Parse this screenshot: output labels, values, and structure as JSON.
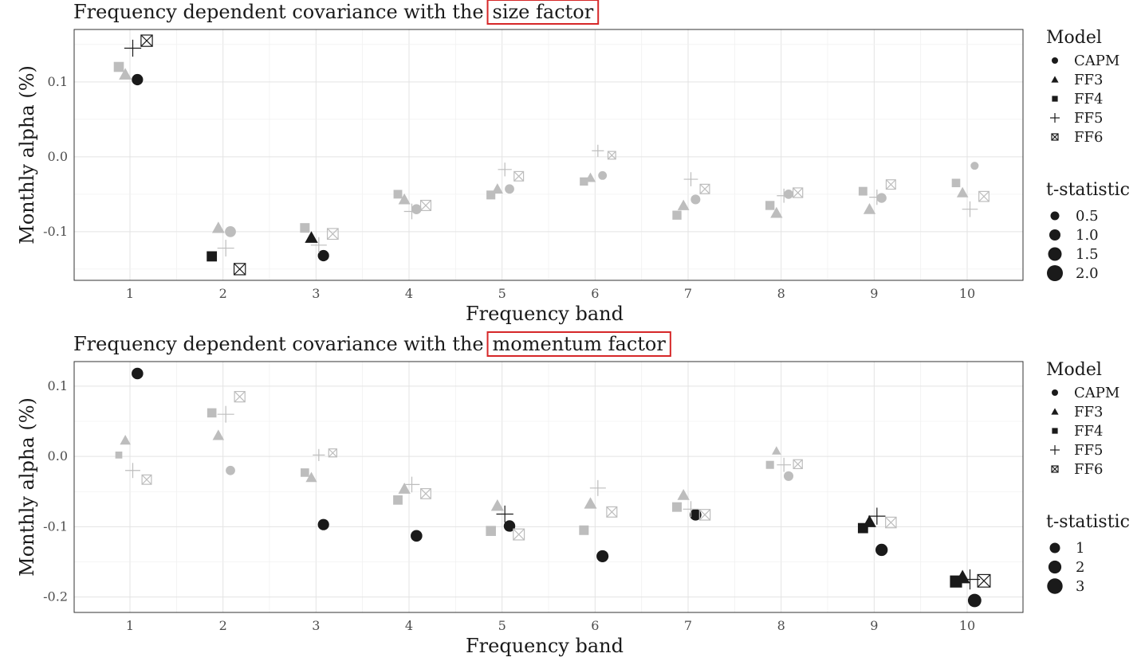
{
  "chart_data": [
    {
      "type": "scatter",
      "title_prefix": "Frequency dependent covariance with the",
      "title_highlight": "size factor",
      "xlabel": "Frequency band",
      "ylabel": "Monthly alpha (%)",
      "x_ticks": [
        1,
        2,
        3,
        4,
        5,
        6,
        7,
        8,
        9,
        10
      ],
      "y_ticks": [
        0.1,
        0.0,
        -0.1
      ],
      "y_tick_labels": [
        "0.1",
        "0.0",
        "-0.1"
      ],
      "xlim": [
        0.4,
        10.6
      ],
      "ylim": [
        -0.165,
        0.17
      ],
      "legend_model": {
        "title": "Model",
        "items": [
          "CAPM",
          "FF3",
          "FF4",
          "FF5",
          "FF6"
        ]
      },
      "legend_t": {
        "title": "t-statistic",
        "values": [
          0.5,
          1.0,
          1.5,
          2.0
        ],
        "labels": [
          "0.5",
          "1.0",
          "1.5",
          "2.0"
        ]
      },
      "colors": {
        "significant": "#1a1a1a",
        "insignificant": "#bdbdbd"
      },
      "series": [
        {
          "name": "CAPM",
          "points": [
            {
              "band": 1,
              "alpha": 0.103,
              "t": 2.0
            },
            {
              "band": 2,
              "alpha": -0.1,
              "t": 1.8
            },
            {
              "band": 3,
              "alpha": -0.132,
              "t": 2.0
            },
            {
              "band": 4,
              "alpha": -0.07,
              "t": 1.3
            },
            {
              "band": 5,
              "alpha": -0.043,
              "t": 1.0
            },
            {
              "band": 6,
              "alpha": -0.025,
              "t": 0.7
            },
            {
              "band": 7,
              "alpha": -0.057,
              "t": 1.1
            },
            {
              "band": 8,
              "alpha": -0.05,
              "t": 1.0
            },
            {
              "band": 9,
              "alpha": -0.055,
              "t": 1.2
            },
            {
              "band": 10,
              "alpha": -0.012,
              "t": 0.5
            }
          ]
        },
        {
          "name": "FF3",
          "points": [
            {
              "band": 1,
              "alpha": 0.11,
              "t": 1.9
            },
            {
              "band": 2,
              "alpha": -0.095,
              "t": 1.8
            },
            {
              "band": 3,
              "alpha": -0.108,
              "t": 2.0
            },
            {
              "band": 4,
              "alpha": -0.057,
              "t": 1.5
            },
            {
              "band": 5,
              "alpha": -0.043,
              "t": 1.2
            },
            {
              "band": 6,
              "alpha": -0.028,
              "t": 0.9
            },
            {
              "band": 7,
              "alpha": -0.065,
              "t": 1.4
            },
            {
              "band": 8,
              "alpha": -0.075,
              "t": 1.6
            },
            {
              "band": 9,
              "alpha": -0.07,
              "t": 1.6
            },
            {
              "band": 10,
              "alpha": -0.048,
              "t": 1.3
            }
          ]
        },
        {
          "name": "FF4",
          "points": [
            {
              "band": 1,
              "alpha": 0.12,
              "t": 1.9
            },
            {
              "band": 2,
              "alpha": -0.133,
              "t": 2.0
            },
            {
              "band": 3,
              "alpha": -0.095,
              "t": 1.6
            },
            {
              "band": 4,
              "alpha": -0.05,
              "t": 1.1
            },
            {
              "band": 5,
              "alpha": -0.051,
              "t": 1.2
            },
            {
              "band": 6,
              "alpha": -0.033,
              "t": 0.9
            },
            {
              "band": 7,
              "alpha": -0.078,
              "t": 1.3
            },
            {
              "band": 8,
              "alpha": -0.065,
              "t": 1.3
            },
            {
              "band": 9,
              "alpha": -0.046,
              "t": 1.1
            },
            {
              "band": 10,
              "alpha": -0.035,
              "t": 1.0
            }
          ]
        },
        {
          "name": "FF5",
          "points": [
            {
              "band": 1,
              "alpha": 0.145,
              "t": 2.0
            },
            {
              "band": 2,
              "alpha": -0.122,
              "t": 1.9
            },
            {
              "band": 3,
              "alpha": -0.118,
              "t": 1.6
            },
            {
              "band": 4,
              "alpha": -0.073,
              "t": 1.5
            },
            {
              "band": 5,
              "alpha": -0.017,
              "t": 0.9
            },
            {
              "band": 6,
              "alpha": 0.008,
              "t": 0.5
            },
            {
              "band": 7,
              "alpha": -0.03,
              "t": 1.0
            },
            {
              "band": 8,
              "alpha": -0.052,
              "t": 1.0
            },
            {
              "band": 9,
              "alpha": -0.054,
              "t": 1.4
            },
            {
              "band": 10,
              "alpha": -0.07,
              "t": 1.5
            }
          ]
        },
        {
          "name": "FF6",
          "points": [
            {
              "band": 1,
              "alpha": 0.155,
              "t": 2.0
            },
            {
              "band": 2,
              "alpha": -0.15,
              "t": 2.0
            },
            {
              "band": 3,
              "alpha": -0.103,
              "t": 1.7
            },
            {
              "band": 4,
              "alpha": -0.065,
              "t": 1.4
            },
            {
              "band": 5,
              "alpha": -0.026,
              "t": 1.0
            },
            {
              "band": 6,
              "alpha": 0.002,
              "t": 0.4
            },
            {
              "band": 7,
              "alpha": -0.043,
              "t": 1.0
            },
            {
              "band": 8,
              "alpha": -0.048,
              "t": 1.1
            },
            {
              "band": 9,
              "alpha": -0.037,
              "t": 1.0
            },
            {
              "band": 10,
              "alpha": -0.053,
              "t": 1.3
            }
          ]
        }
      ]
    },
    {
      "type": "scatter",
      "title_prefix": "Frequency dependent covariance with the",
      "title_highlight": "momentum factor",
      "xlabel": "Frequency band",
      "ylabel": "Monthly alpha (%)",
      "x_ticks": [
        1,
        2,
        3,
        4,
        5,
        6,
        7,
        8,
        9,
        10
      ],
      "y_ticks": [
        0.1,
        0.0,
        -0.1,
        -0.2
      ],
      "y_tick_labels": [
        "0.1",
        "0.0",
        "-0.1",
        "-0.2"
      ],
      "xlim": [
        0.4,
        10.6
      ],
      "ylim": [
        -0.222,
        0.135
      ],
      "legend_model": {
        "title": "Model",
        "items": [
          "CAPM",
          "FF3",
          "FF4",
          "FF5",
          "FF6"
        ]
      },
      "legend_t": {
        "title": "t-statistic",
        "values": [
          1,
          2,
          3
        ],
        "labels": [
          "1",
          "2",
          "3"
        ]
      },
      "colors": {
        "significant": "#1a1a1a",
        "insignificant": "#bdbdbd"
      },
      "series": [
        {
          "name": "CAPM",
          "points": [
            {
              "band": 1,
              "alpha": 0.118,
              "t": 2.2
            },
            {
              "band": 2,
              "alpha": -0.02,
              "t": 1.0
            },
            {
              "band": 3,
              "alpha": -0.097,
              "t": 2.0
            },
            {
              "band": 4,
              "alpha": -0.113,
              "t": 2.2
            },
            {
              "band": 5,
              "alpha": -0.099,
              "t": 2.1
            },
            {
              "band": 6,
              "alpha": -0.142,
              "t": 2.5
            },
            {
              "band": 7,
              "alpha": -0.083,
              "t": 2.2
            },
            {
              "band": 8,
              "alpha": -0.028,
              "t": 1.1
            },
            {
              "band": 9,
              "alpha": -0.133,
              "t": 2.6
            },
            {
              "band": 10,
              "alpha": -0.205,
              "t": 3.5
            }
          ]
        },
        {
          "name": "FF3",
          "points": [
            {
              "band": 1,
              "alpha": 0.023,
              "t": 1.0
            },
            {
              "band": 2,
              "alpha": 0.03,
              "t": 1.3
            },
            {
              "band": 3,
              "alpha": -0.03,
              "t": 1.2
            },
            {
              "band": 4,
              "alpha": -0.046,
              "t": 1.6
            },
            {
              "band": 5,
              "alpha": -0.07,
              "t": 1.9
            },
            {
              "band": 6,
              "alpha": -0.067,
              "t": 1.9
            },
            {
              "band": 7,
              "alpha": -0.055,
              "t": 1.6
            },
            {
              "band": 8,
              "alpha": 0.008,
              "t": 0.5
            },
            {
              "band": 9,
              "alpha": -0.093,
              "t": 2.2
            },
            {
              "band": 10,
              "alpha": -0.172,
              "t": 3.2
            }
          ]
        },
        {
          "name": "FF4",
          "points": [
            {
              "band": 1,
              "alpha": 0.002,
              "t": 0.4
            },
            {
              "band": 2,
              "alpha": 0.062,
              "t": 1.4
            },
            {
              "band": 3,
              "alpha": -0.023,
              "t": 1.0
            },
            {
              "band": 4,
              "alpha": -0.062,
              "t": 1.5
            },
            {
              "band": 5,
              "alpha": -0.106,
              "t": 1.9
            },
            {
              "band": 6,
              "alpha": -0.105,
              "t": 1.6
            },
            {
              "band": 7,
              "alpha": -0.072,
              "t": 1.6
            },
            {
              "band": 8,
              "alpha": -0.012,
              "t": 0.8
            },
            {
              "band": 9,
              "alpha": -0.102,
              "t": 2.0
            },
            {
              "band": 10,
              "alpha": -0.178,
              "t": 3.5
            }
          ]
        },
        {
          "name": "FF5",
          "points": [
            {
              "band": 1,
              "alpha": -0.02,
              "t": 1.3
            },
            {
              "band": 2,
              "alpha": 0.06,
              "t": 1.9
            },
            {
              "band": 3,
              "alpha": 0.002,
              "t": 0.5
            },
            {
              "band": 4,
              "alpha": -0.04,
              "t": 1.5
            },
            {
              "band": 5,
              "alpha": -0.082,
              "t": 2.0
            },
            {
              "band": 6,
              "alpha": -0.045,
              "t": 1.6
            },
            {
              "band": 7,
              "alpha": -0.075,
              "t": 1.6
            },
            {
              "band": 8,
              "alpha": -0.012,
              "t": 1.0
            },
            {
              "band": 9,
              "alpha": -0.085,
              "t": 2.0
            },
            {
              "band": 10,
              "alpha": -0.175,
              "t": 3.5
            }
          ]
        },
        {
          "name": "FF6",
          "points": [
            {
              "band": 1,
              "alpha": -0.033,
              "t": 1.0
            },
            {
              "band": 2,
              "alpha": 0.085,
              "t": 1.5
            },
            {
              "band": 3,
              "alpha": 0.005,
              "t": 0.5
            },
            {
              "band": 4,
              "alpha": -0.053,
              "t": 1.3
            },
            {
              "band": 5,
              "alpha": -0.111,
              "t": 1.8
            },
            {
              "band": 6,
              "alpha": -0.079,
              "t": 1.4
            },
            {
              "band": 7,
              "alpha": -0.083,
              "t": 1.6
            },
            {
              "band": 8,
              "alpha": -0.011,
              "t": 0.8
            },
            {
              "band": 9,
              "alpha": -0.094,
              "t": 1.6
            },
            {
              "band": 10,
              "alpha": -0.177,
              "t": 2.8
            }
          ]
        }
      ]
    }
  ]
}
